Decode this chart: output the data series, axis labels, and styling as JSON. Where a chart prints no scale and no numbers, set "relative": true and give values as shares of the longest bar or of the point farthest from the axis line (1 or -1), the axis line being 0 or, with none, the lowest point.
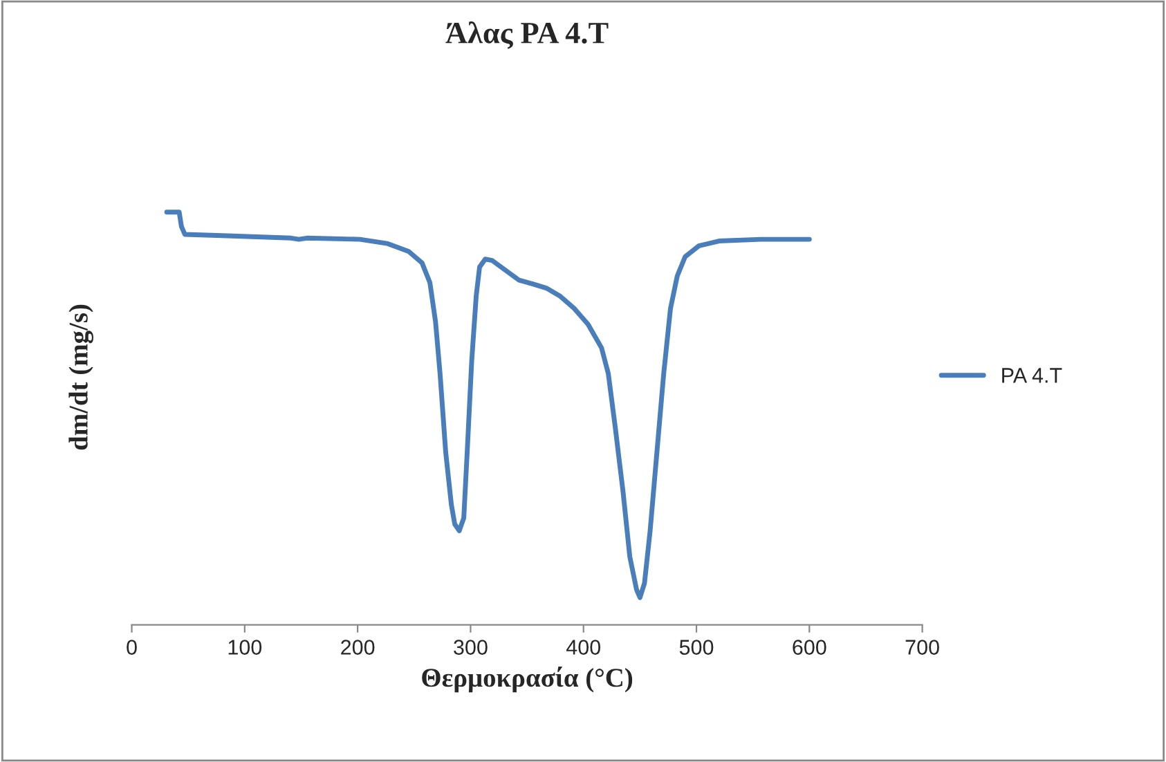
{
  "chart_data": {
    "type": "line",
    "title": "Άλας PA 4.T",
    "xlabel": "Θερμοκρασία (°C)",
    "ylabel": "dm/dt (mg/s)",
    "relative": true,
    "xlim": [
      0,
      700
    ],
    "xticks": [
      0,
      100,
      200,
      300,
      400,
      500,
      600,
      700
    ],
    "grid": false,
    "legend": "right",
    "marker": "none",
    "line_style": "solid",
    "x": [
      31,
      42,
      44,
      47,
      80,
      141,
      148,
      155,
      202,
      226,
      245,
      257,
      264,
      269,
      273,
      278,
      283,
      286,
      290,
      294,
      297,
      301,
      305,
      308,
      313,
      319,
      330,
      343,
      355,
      367,
      379,
      392,
      404,
      416,
      422,
      428,
      435,
      441,
      447,
      450,
      454,
      459,
      465,
      471,
      477,
      483,
      490,
      502,
      520,
      557,
      600
    ],
    "series": [
      {
        "name": "PA 4.T",
        "color": "#4a7ebb",
        "values": [
          1.0,
          1.0,
          0.965,
          0.946,
          0.943,
          0.937,
          0.934,
          0.937,
          0.934,
          0.924,
          0.905,
          0.877,
          0.829,
          0.734,
          0.608,
          0.418,
          0.291,
          0.244,
          0.228,
          0.259,
          0.418,
          0.639,
          0.797,
          0.867,
          0.886,
          0.883,
          0.861,
          0.835,
          0.826,
          0.816,
          0.797,
          0.766,
          0.728,
          0.671,
          0.608,
          0.481,
          0.323,
          0.165,
          0.085,
          0.066,
          0.101,
          0.228,
          0.418,
          0.608,
          0.766,
          0.845,
          0.892,
          0.918,
          0.93,
          0.934,
          0.934
        ]
      }
    ]
  }
}
